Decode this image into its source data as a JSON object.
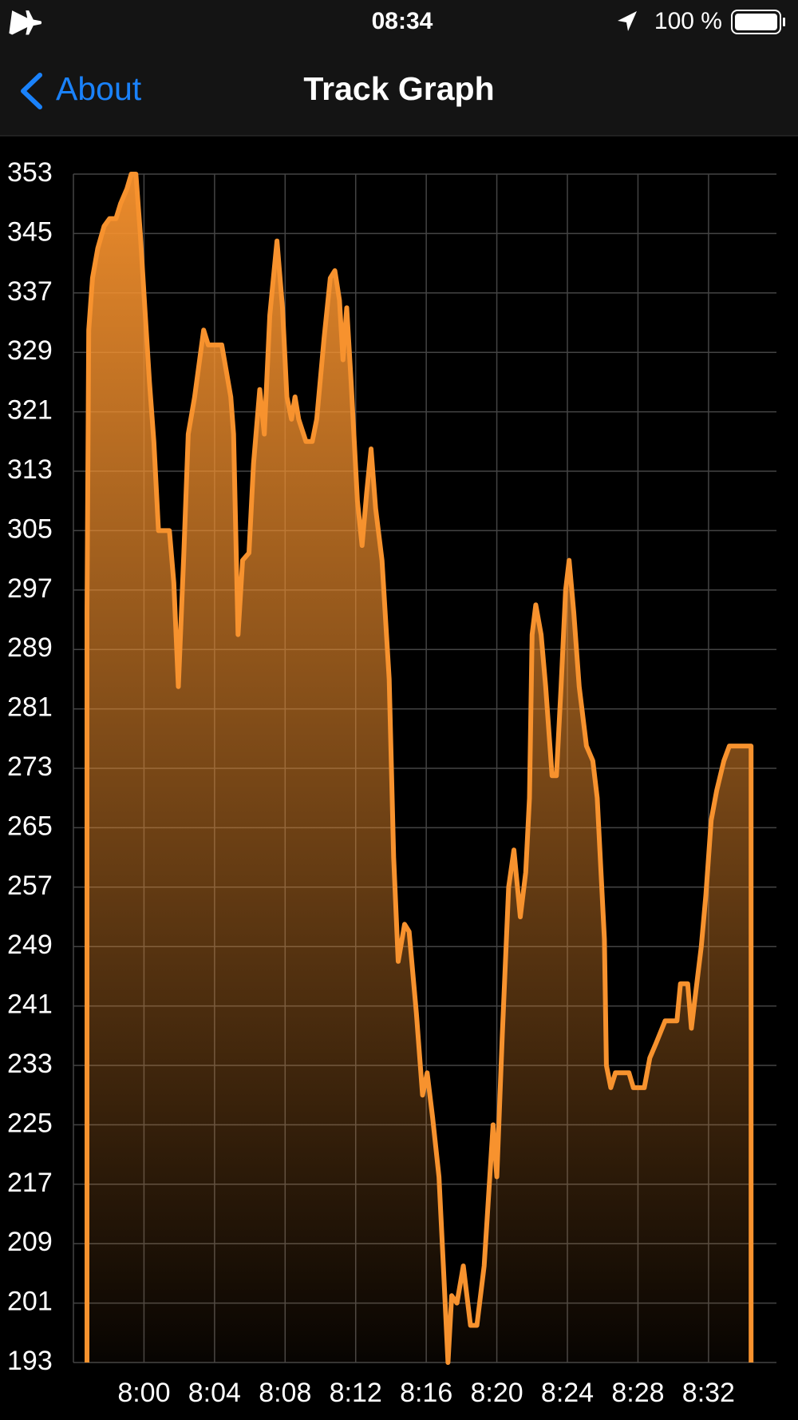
{
  "status_bar": {
    "time": "08:34",
    "battery": "100 %"
  },
  "nav": {
    "back": "About",
    "title": "Track Graph"
  },
  "chart_data": {
    "type": "line",
    "color": "#f7922e",
    "grid": true,
    "x": [
      476.77,
      476.77,
      476.87,
      477.08,
      477.38,
      477.74,
      478.05,
      478.41,
      478.67,
      479.03,
      479.28,
      479.54,
      479.79,
      480.05,
      480.31,
      480.56,
      480.82,
      481.44,
      481.69,
      481.95,
      482.26,
      482.51,
      482.87,
      483.38,
      483.64,
      484.41,
      484.92,
      485.08,
      485.33,
      485.59,
      485.95,
      486.21,
      486.56,
      486.82,
      487.13,
      487.54,
      487.85,
      488.1,
      488.36,
      488.56,
      488.77,
      489.18,
      489.54,
      489.79,
      490.21,
      490.56,
      490.82,
      491.08,
      491.28,
      491.49,
      491.74,
      492.1,
      492.36,
      492.62,
      492.87,
      493.13,
      493.49,
      493.9,
      494.15,
      494.41,
      494.77,
      495.03,
      495.44,
      495.79,
      496.05,
      496.36,
      496.72,
      496.97,
      497.23,
      497.44,
      497.74,
      498.1,
      498.51,
      498.87,
      499.28,
      499.79,
      500.0,
      500.31,
      500.67,
      500.97,
      501.33,
      501.64,
      501.85,
      502.0,
      502.21,
      502.51,
      502.77,
      503.13,
      503.38,
      503.64,
      503.9,
      504.1,
      504.36,
      504.67,
      505.08,
      505.44,
      505.69,
      506.1,
      506.21,
      506.46,
      506.72,
      507.49,
      507.74,
      508.36,
      508.67,
      509.03,
      509.54,
      510.21,
      510.41,
      510.82,
      511.03,
      511.23,
      511.59,
      511.85,
      512.15,
      512.46,
      512.87,
      513.18,
      514.41,
      514.41
    ],
    "values": [
      193,
      294,
      332,
      339,
      343,
      346,
      347,
      347,
      349,
      351,
      353,
      353,
      345,
      335,
      325,
      317,
      305,
      305,
      298,
      284,
      302,
      318,
      323,
      332,
      330,
      330,
      323,
      318,
      291,
      301,
      302,
      314,
      324,
      318,
      334,
      344,
      335,
      323,
      320,
      323,
      320,
      317,
      317,
      320,
      331,
      339,
      340,
      336,
      328,
      335,
      325,
      309,
      303,
      310,
      316,
      308,
      301,
      285,
      261,
      247,
      252,
      251,
      240,
      229,
      232,
      226,
      218,
      206,
      193,
      202,
      201,
      206,
      198,
      198,
      206,
      225,
      218,
      237,
      257,
      262,
      253,
      259,
      269,
      291,
      295,
      291,
      284,
      272,
      272,
      284,
      297,
      301,
      294,
      284,
      276,
      274,
      269,
      250,
      233,
      230,
      232,
      232,
      230,
      230,
      234,
      236,
      239,
      239,
      244,
      244,
      238,
      242,
      249,
      256,
      266,
      270,
      274,
      276,
      276,
      193
    ],
    "xlim": [
      476,
      515.85
    ],
    "xticks": [
      {
        "value": 480,
        "label": "8:00"
      },
      {
        "value": 484,
        "label": "8:04"
      },
      {
        "value": 488,
        "label": "8:08"
      },
      {
        "value": 492,
        "label": "8:12"
      },
      {
        "value": 496,
        "label": "8:16"
      },
      {
        "value": 500,
        "label": "8:20"
      },
      {
        "value": 504,
        "label": "8:24"
      },
      {
        "value": 508,
        "label": "8:28"
      },
      {
        "value": 512,
        "label": "8:32"
      }
    ],
    "ylim": [
      193,
      353
    ],
    "yticks": [
      193,
      201,
      209,
      217,
      225,
      233,
      241,
      249,
      257,
      265,
      273,
      281,
      289,
      297,
      305,
      313,
      321,
      329,
      337,
      345,
      353
    ]
  }
}
